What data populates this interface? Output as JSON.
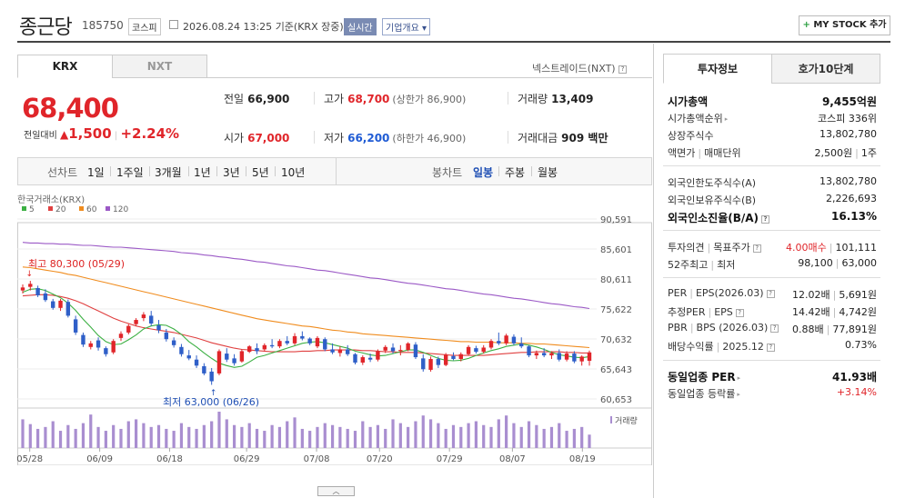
{
  "header": {
    "name": "종근당",
    "code": "185750",
    "market": "코스피",
    "datetime": "2026.08.24 13:25",
    "basis": "기준(KRX 장중)",
    "realtime": "실시간",
    "company_info": "기업개요",
    "mystock": "MY STOCK 추가"
  },
  "exchange_tabs": [
    "KRX",
    "NXT"
  ],
  "nextrade_link": "넥스트레이드(NXT)",
  "price": {
    "current": "68,400",
    "change_label": "전일대비",
    "change": "1,500",
    "change_pct": "+2.24%",
    "prev_label": "전일",
    "prev": "66,900",
    "open_label": "시가",
    "open": "67,000",
    "high_label": "고가",
    "high": "68,700",
    "upper_limit": "(상한가 86,900)",
    "low_label": "저가",
    "low": "66,200",
    "lower_limit": "(하한가 46,900)",
    "volume_label": "거래량",
    "volume": "13,409",
    "amount_label": "거래대금",
    "amount": "909 백만"
  },
  "period_bar": {
    "line_chart": "선차트",
    "periods": [
      "1일",
      "1주일",
      "3개월",
      "1년",
      "3년",
      "5년",
      "10년"
    ],
    "candle_chart": "봉차트",
    "candle_periods": [
      "일봉",
      "주봉",
      "월봉"
    ],
    "active": "일봉"
  },
  "chart_data": {
    "type": "candlestick",
    "source": "한국거래소(KRX)",
    "legend": [
      "5",
      "20",
      "60",
      "120"
    ],
    "colors": {
      "ma5": "#3cb043",
      "ma20": "#e04040",
      "ma60": "#f08c1e",
      "ma120": "#9b59c6",
      "up": "#e0252a",
      "down": "#2f5fc8",
      "volume": "#a98ed0"
    },
    "y_ticks": [
      "90,591",
      "85,601",
      "80,611",
      "75,622",
      "70,632",
      "65,643",
      "60,653"
    ],
    "x_ticks": [
      "05/28",
      "06/09",
      "06/18",
      "06/29",
      "07/08",
      "07/20",
      "07/29",
      "08/07",
      "08/19"
    ],
    "ylim": [
      60653,
      90591
    ],
    "max_label": "최고 80,300 (05/29)",
    "min_label": "최저 63,000 (06/26)",
    "volume_label": "거래량",
    "candles": [
      [
        78700,
        79700,
        78200,
        79200
      ],
      [
        79300,
        80300,
        78700,
        79800
      ],
      [
        79100,
        79500,
        77600,
        77900
      ],
      [
        78200,
        78900,
        76800,
        77100
      ],
      [
        76900,
        77300,
        75500,
        75800
      ],
      [
        75800,
        77300,
        75300,
        77000
      ],
      [
        76800,
        77200,
        74200,
        74500
      ],
      [
        73900,
        74500,
        71300,
        71700
      ],
      [
        71300,
        71700,
        69300,
        69700
      ],
      [
        69300,
        70300,
        68900,
        69900
      ],
      [
        70400,
        70900,
        68700,
        69200
      ],
      [
        69100,
        69400,
        67700,
        68100
      ],
      [
        68400,
        70600,
        68100,
        70300
      ],
      [
        70800,
        71900,
        70300,
        71500
      ],
      [
        71700,
        73100,
        71400,
        72800
      ],
      [
        73100,
        74100,
        72800,
        73800
      ],
      [
        74100,
        75100,
        73600,
        74700
      ],
      [
        74500,
        75300,
        72800,
        73200
      ],
      [
        72900,
        73800,
        71600,
        72100
      ],
      [
        71700,
        72300,
        70200,
        70600
      ],
      [
        70400,
        70900,
        69200,
        69600
      ],
      [
        69300,
        69800,
        67700,
        68100
      ],
      [
        67900,
        68800,
        67100,
        67400
      ],
      [
        67200,
        67900,
        65800,
        66200
      ],
      [
        66100,
        66600,
        64600,
        64900
      ],
      [
        65200,
        65800,
        63000,
        63600
      ],
      [
        64900,
        68900,
        64600,
        68600
      ],
      [
        68200,
        69100,
        66800,
        67200
      ],
      [
        67400,
        68100,
        66200,
        66600
      ],
      [
        66900,
        68900,
        66700,
        68600
      ],
      [
        68500,
        69600,
        68300,
        69400
      ],
      [
        69100,
        69900,
        68100,
        68600
      ],
      [
        68900,
        69900,
        68600,
        69600
      ],
      [
        69600,
        70600,
        69100,
        69400
      ],
      [
        69400,
        70600,
        69100,
        70300
      ],
      [
        70300,
        71100,
        69600,
        69900
      ],
      [
        69900,
        71600,
        69600,
        71100
      ],
      [
        71100,
        71900,
        70400,
        70700
      ],
      [
        70700,
        70900,
        69600,
        69900
      ],
      [
        69400,
        71100,
        69100,
        70800
      ],
      [
        70600,
        70900,
        68600,
        68900
      ],
      [
        68900,
        69900,
        68100,
        68400
      ],
      [
        68300,
        69400,
        67700,
        68900
      ],
      [
        68900,
        69600,
        67800,
        68100
      ],
      [
        68100,
        68300,
        66400,
        66700
      ],
      [
        66700,
        67900,
        66300,
        67600
      ],
      [
        67500,
        68200,
        66800,
        67200
      ],
      [
        67200,
        68900,
        66900,
        68600
      ],
      [
        68700,
        69600,
        68300,
        69300
      ],
      [
        69200,
        69900,
        68200,
        68600
      ],
      [
        68600,
        69600,
        67900,
        68800
      ],
      [
        68800,
        70100,
        68600,
        69900
      ],
      [
        69700,
        70100,
        67300,
        67600
      ],
      [
        67400,
        68100,
        65200,
        65600
      ],
      [
        65500,
        67700,
        65200,
        67300
      ],
      [
        67300,
        67700,
        65800,
        66300
      ],
      [
        66300,
        68300,
        66100,
        68000
      ],
      [
        67800,
        68400,
        67100,
        67300
      ],
      [
        67300,
        68400,
        66900,
        68100
      ],
      [
        68100,
        69600,
        67900,
        69300
      ],
      [
        69100,
        69500,
        68200,
        68500
      ],
      [
        68500,
        69600,
        68200,
        69200
      ],
      [
        69200,
        70600,
        68900,
        70300
      ],
      [
        70300,
        71700,
        69600,
        69900
      ],
      [
        69900,
        71500,
        69600,
        71200
      ],
      [
        71000,
        71400,
        69600,
        69900
      ],
      [
        69900,
        70900,
        69100,
        69400
      ],
      [
        69400,
        69600,
        67600,
        67900
      ],
      [
        67900,
        68700,
        67300,
        68300
      ],
      [
        68300,
        69100,
        67600,
        67900
      ],
      [
        67900,
        68600,
        67300,
        68300
      ],
      [
        68300,
        68900,
        66900,
        67200
      ],
      [
        67200,
        68600,
        66900,
        68200
      ],
      [
        68200,
        68600,
        66600,
        66900
      ],
      [
        66900,
        67900,
        66200,
        67700
      ],
      [
        67000,
        68700,
        66200,
        68400
      ]
    ],
    "volume": [
      30,
      25,
      20,
      22,
      28,
      18,
      24,
      20,
      26,
      35,
      22,
      18,
      24,
      20,
      28,
      30,
      26,
      22,
      24,
      20,
      18,
      26,
      22,
      20,
      24,
      28,
      38,
      30,
      24,
      22,
      26,
      20,
      18,
      24,
      22,
      28,
      32,
      20,
      18,
      22,
      26,
      24,
      22,
      20,
      18,
      28,
      22,
      24,
      20,
      30,
      26,
      22,
      28,
      34,
      30,
      26,
      20,
      24,
      22,
      26,
      28,
      24,
      22,
      30,
      34,
      26,
      22,
      28,
      24,
      20,
      22,
      26,
      18,
      20,
      22,
      14
    ],
    "ma5": [
      78400,
      78900,
      79000,
      78700,
      78100,
      77500,
      76600,
      75400,
      73900,
      72600,
      71200,
      70200,
      69700,
      69800,
      70500,
      71300,
      72300,
      72800,
      73000,
      72900,
      72300,
      71400,
      70200,
      69300,
      68300,
      67400,
      66600,
      66200,
      65900,
      66100,
      66800,
      67600,
      67900,
      68300,
      68700,
      69100,
      69500,
      69900,
      70100,
      70200,
      70000,
      69700,
      69400,
      69100,
      68600,
      68300,
      68000,
      67800,
      67900,
      68200,
      68500,
      68800,
      68800,
      68400,
      67900,
      67400,
      67100,
      67000,
      67100,
      67400,
      67900,
      68300,
      68700,
      69000,
      69400,
      69600,
      69800,
      69600,
      69300,
      68900,
      68400,
      68000,
      67800,
      67600,
      67500,
      67700
    ],
    "ma20": [
      77800,
      77900,
      78000,
      78000,
      77900,
      77700,
      77400,
      77000,
      76500,
      75900,
      75300,
      74700,
      74100,
      73600,
      73200,
      72800,
      72500,
      72300,
      72100,
      71900,
      71700,
      71400,
      71100,
      70800,
      70400,
      70000,
      69700,
      69400,
      69100,
      68900,
      68800,
      68700,
      68600,
      68500,
      68500,
      68500,
      68500,
      68600,
      68600,
      68700,
      68700,
      68800,
      68800,
      68800,
      68800,
      68700,
      68700,
      68600,
      68500,
      68500,
      68400,
      68400,
      68400,
      68300,
      68200,
      68100,
      68000,
      67900,
      67900,
      67900,
      67900,
      67900,
      68000,
      68100,
      68200,
      68300,
      68400,
      68400,
      68500,
      68500,
      68500,
      68500,
      68400,
      68400,
      68300,
      68300
    ],
    "ma60": [
      82600,
      82500,
      82300,
      82100,
      81900,
      81700,
      81400,
      81200,
      80900,
      80600,
      80300,
      80000,
      79700,
      79400,
      79100,
      78800,
      78500,
      78200,
      77900,
      77600,
      77300,
      77000,
      76700,
      76400,
      76100,
      75800,
      75500,
      75200,
      74900,
      74600,
      74300,
      74000,
      73800,
      73600,
      73400,
      73200,
      73000,
      72800,
      72700,
      72500,
      72300,
      72100,
      72000,
      71800,
      71700,
      71500,
      71400,
      71300,
      71200,
      71100,
      71000,
      70900,
      70800,
      70700,
      70600,
      70500,
      70400,
      70300,
      70200,
      70200,
      70100,
      70100,
      70100,
      70000,
      70000,
      70000,
      69900,
      69900,
      69800,
      69800,
      69700,
      69600,
      69500,
      69400,
      69300,
      69200
    ],
    "ma120": [
      86700,
      86600,
      86600,
      86500,
      86500,
      86400,
      86400,
      86300,
      86200,
      86200,
      86100,
      86000,
      85900,
      85900,
      85800,
      85700,
      85600,
      85500,
      85400,
      85300,
      85200,
      85000,
      84900,
      84800,
      84600,
      84500,
      84300,
      84200,
      84000,
      83900,
      83700,
      83500,
      83400,
      83200,
      83000,
      82800,
      82700,
      82500,
      82300,
      82100,
      82000,
      81800,
      81600,
      81400,
      81200,
      81000,
      80800,
      80700,
      80500,
      80300,
      80100,
      79900,
      79800,
      79600,
      79400,
      79200,
      79000,
      78900,
      78700,
      78500,
      78300,
      78100,
      78000,
      77800,
      77600,
      77400,
      77300,
      77100,
      76900,
      76700,
      76500,
      76400,
      76200,
      76000,
      75900,
      75700
    ]
  },
  "invest_tabs": [
    "투자정보",
    "호가10단계"
  ],
  "invest": {
    "rows": [
      {
        "l": "시가총액",
        "r": "9,455억원",
        "bold": true
      },
      {
        "l": "시가총액순위",
        "r": "코스피 336위",
        "tri": true
      },
      {
        "l": "상장주식수",
        "r": "13,802,780"
      },
      {
        "l": "액면가 | 매매단위",
        "r": "2,500원 | 1주"
      },
      {
        "l": "외국인한도주식수(A)",
        "r": "13,802,780"
      },
      {
        "l": "외국인보유주식수(B)",
        "r": "2,226,693"
      },
      {
        "l": "외국인소진율(B/A)",
        "r": "16.13%",
        "bold": true,
        "q": true
      },
      {
        "l": "투자의견 | 목표주가",
        "r_red": "4.00매수",
        "r": "101,111",
        "q": true
      },
      {
        "l": "52주최고 | 최저",
        "r": "98,100 | 63,000"
      },
      {
        "l": "PER | EPS(2026.03)",
        "r": "12.02배 | 5,691원",
        "q": true
      },
      {
        "l": "추정PER | EPS",
        "r": "14.42배 | 4,742원",
        "q": true
      },
      {
        "l": "PBR | BPS (2026.03)",
        "r": "0.88배 | 77,891원",
        "q": true
      },
      {
        "l": "배당수익률 | 2025.12",
        "r": "0.73%",
        "q": true
      },
      {
        "l": "동일업종 PER",
        "r": "41.93배",
        "bold": true,
        "tri": true
      },
      {
        "l": "동일업종 등락률",
        "r": "+3.14%",
        "red": true,
        "tri": true
      }
    ]
  }
}
